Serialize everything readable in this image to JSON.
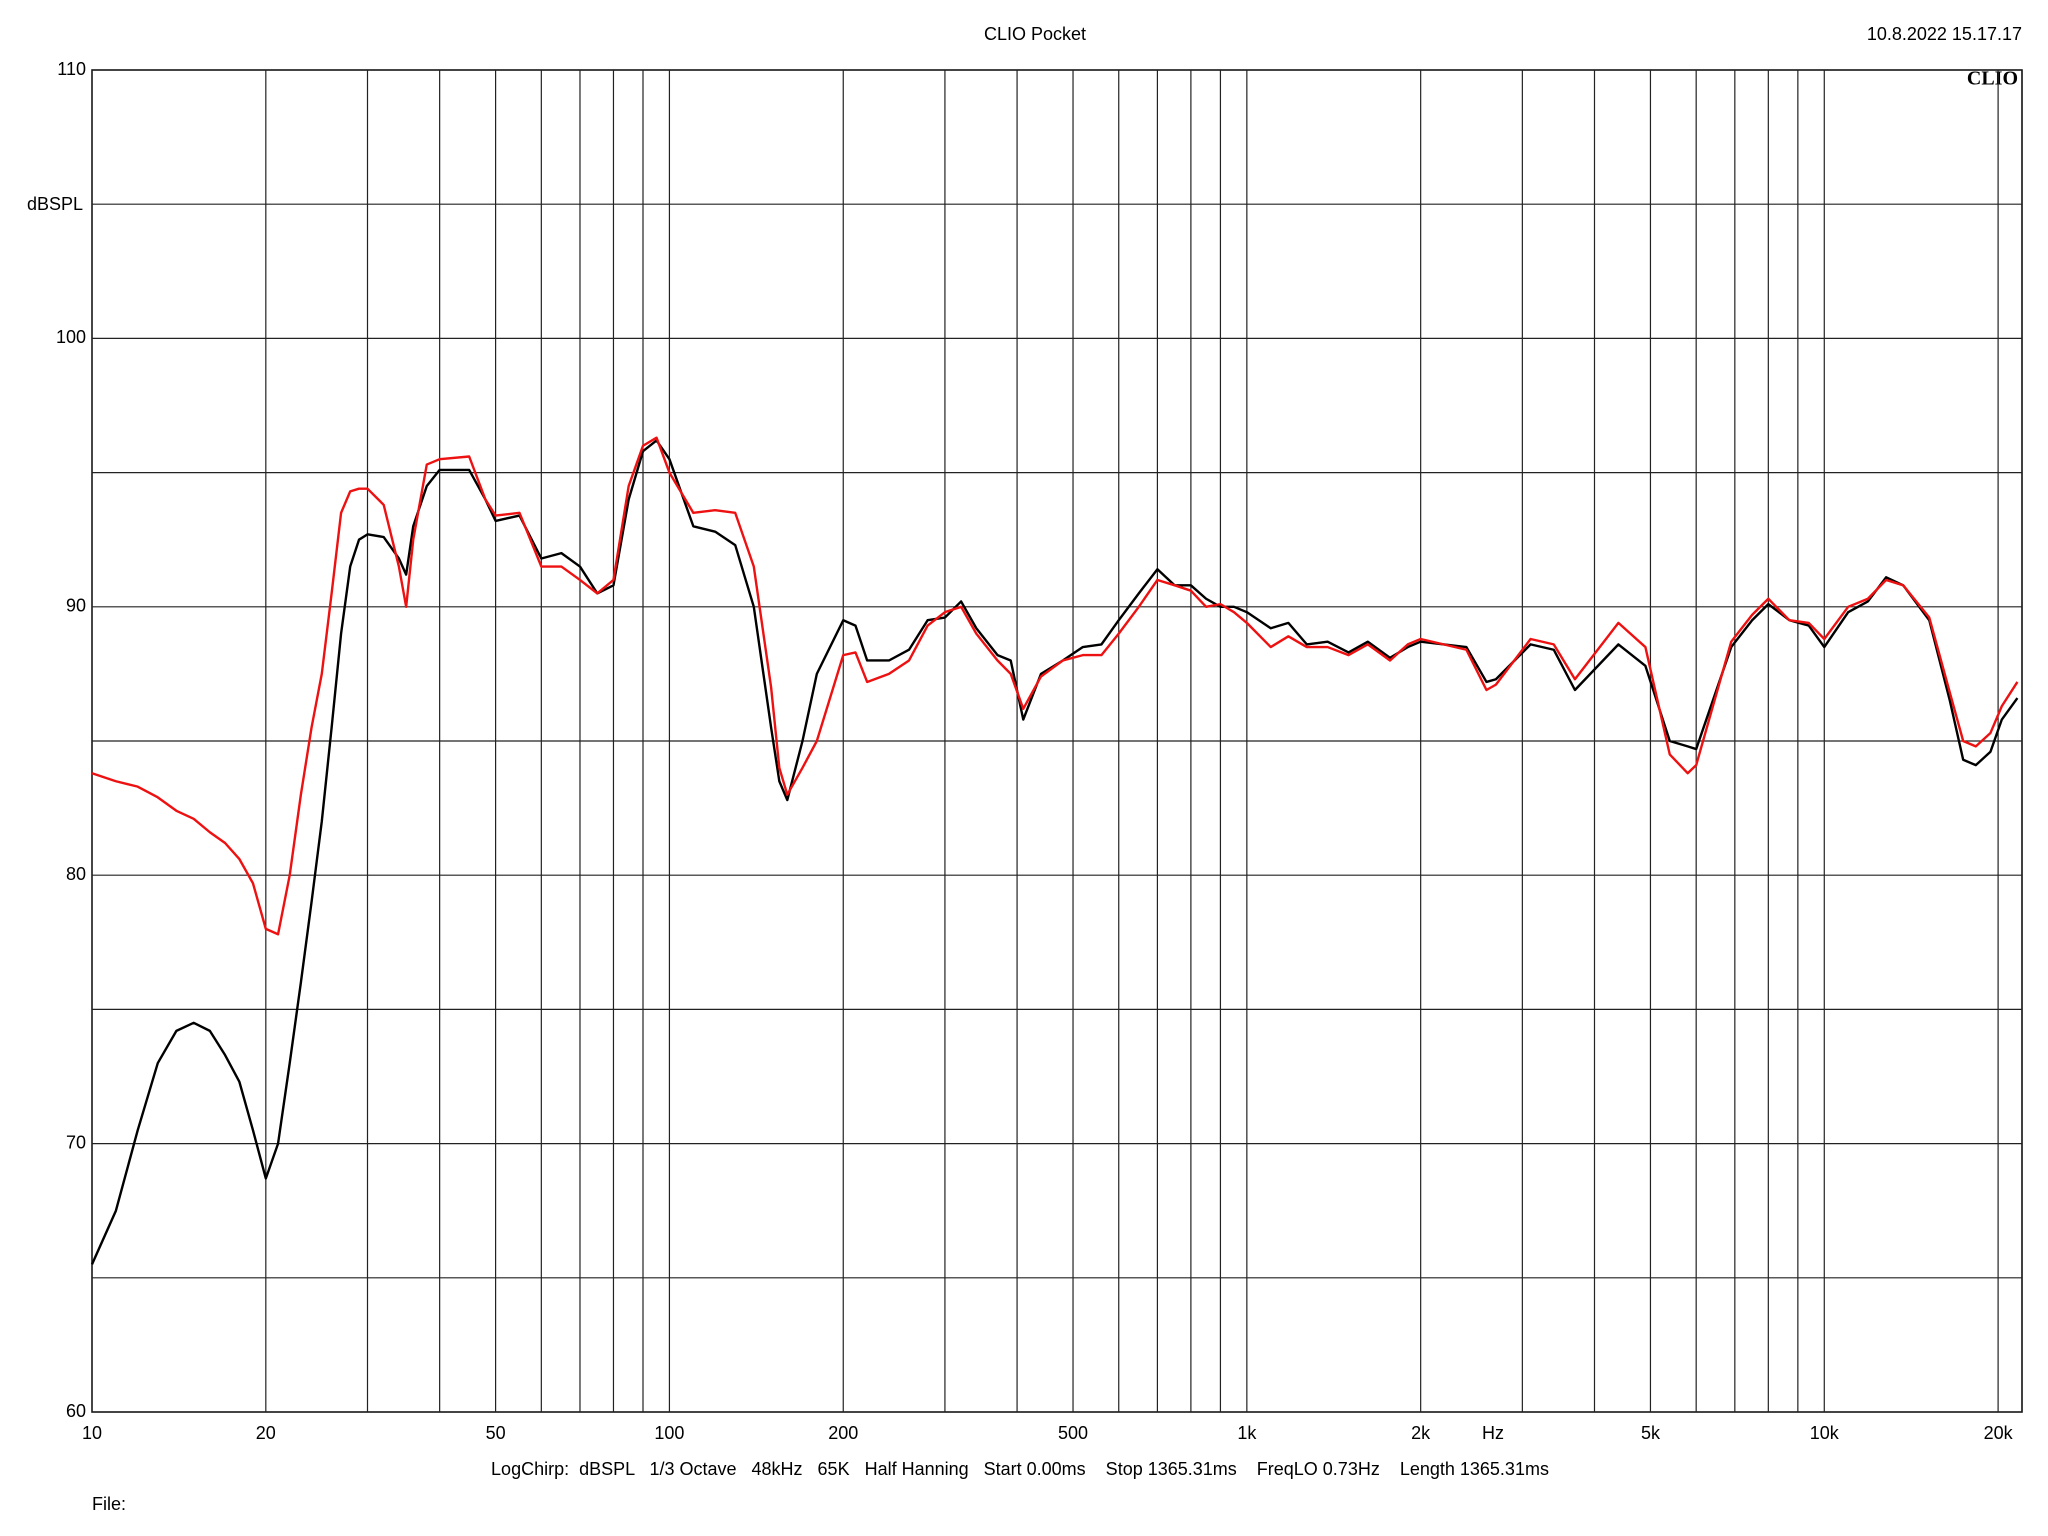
{
  "chart_data": {
    "type": "line",
    "title": "CLIO Pocket",
    "timestamp": "10.8.2022 15.17.17",
    "logo": "CLIO",
    "ylabel": "dBSPL",
    "xlabel": "Hz",
    "settings": "LogChirp:  dBSPL   1/3 Octave   48kHz   65K   Half Hanning   Start 0.00ms    Stop 1365.31ms    FreqLO 0.73Hz    Length 1365.31ms",
    "file_label": "File:",
    "xscale": "log",
    "grid": true,
    "xlim": [
      10,
      22000
    ],
    "ylim": [
      60,
      110
    ],
    "xticks": [
      10,
      20,
      50,
      100,
      200,
      500,
      {
        "value": 1000,
        "label": "1k"
      },
      {
        "value": 2000,
        "label": "2k"
      },
      {
        "value": 5000,
        "label": "5k"
      },
      {
        "value": 10000,
        "label": "10k"
      },
      {
        "value": 20000,
        "label": "20k"
      }
    ],
    "xminor": [
      30,
      40,
      60,
      70,
      80,
      90,
      300,
      400,
      600,
      700,
      800,
      900,
      3000,
      4000,
      6000,
      7000,
      8000,
      9000
    ],
    "yticks": [
      60,
      70,
      80,
      90,
      100,
      110
    ],
    "yminor": [
      65,
      75,
      85,
      95,
      105
    ],
    "x": [
      10,
      11,
      12,
      13,
      14,
      15,
      16,
      17,
      18,
      19,
      20,
      21,
      22,
      23,
      24,
      25,
      26,
      27,
      28,
      29,
      30,
      32,
      34,
      35,
      36,
      38,
      40,
      45,
      48,
      50,
      55,
      60,
      65,
      70,
      75,
      80,
      85,
      90,
      95,
      100,
      110,
      120,
      130,
      140,
      150,
      155,
      160,
      170,
      180,
      200,
      210,
      220,
      240,
      260,
      280,
      300,
      320,
      340,
      370,
      390,
      410,
      440,
      480,
      520,
      560,
      600,
      650,
      700,
      750,
      800,
      850,
      900,
      950,
      1000,
      1100,
      1180,
      1270,
      1380,
      1500,
      1620,
      1770,
      1900,
      2000,
      2400,
      2600,
      2700,
      3100,
      3400,
      3700,
      4400,
      4900,
      5400,
      5800,
      6000,
      6900,
      7500,
      8000,
      8700,
      9400,
      10000,
      11000,
      11900,
      12800,
      13700,
      15200,
      16500,
      17400,
      18300,
      19400,
      20300,
      21600
    ],
    "series": [
      {
        "color": "#000000",
        "values": [
          65.5,
          67.5,
          70.5,
          73,
          74.2,
          74.5,
          74.2,
          73.3,
          72.3,
          70.5,
          68.7,
          70,
          73,
          76,
          79,
          82,
          85.5,
          89,
          91.5,
          92.5,
          92.7,
          92.6,
          91.8,
          91.2,
          93,
          94.5,
          95.1,
          95.1,
          94,
          93.2,
          93.4,
          91.8,
          92,
          91.5,
          90.5,
          90.8,
          94,
          95.8,
          96.2,
          95.5,
          93,
          92.8,
          92.3,
          90,
          85.5,
          83.5,
          82.8,
          85,
          87.5,
          89.5,
          89.3,
          88,
          88,
          88.4,
          89.5,
          89.6,
          90.2,
          89.2,
          88.2,
          88,
          85.8,
          87.5,
          88,
          88.5,
          88.6,
          89.5,
          90.5,
          91.4,
          90.8,
          90.8,
          90.3,
          90,
          90,
          89.8,
          89.2,
          89.4,
          88.6,
          88.7,
          88.3,
          88.7,
          88.1,
          88.5,
          88.7,
          88.5,
          87.2,
          87.3,
          88.6,
          88.4,
          86.9,
          88.6,
          87.8,
          85,
          84.8,
          84.7,
          88.5,
          89.5,
          90.1,
          89.5,
          89.3,
          88.5,
          89.8,
          90.2,
          91.1,
          90.8,
          89.5,
          86.5,
          84.3,
          84.1,
          84.6,
          85.8,
          86.6
        ]
      },
      {
        "color": "#ee1111",
        "values": [
          83.8,
          83.5,
          83.3,
          82.9,
          82.4,
          82.1,
          81.6,
          81.2,
          80.6,
          79.7,
          78,
          77.8,
          80,
          83,
          85.5,
          87.5,
          90.5,
          93.5,
          94.3,
          94.4,
          94.4,
          93.8,
          91.5,
          90,
          92.5,
          95.3,
          95.5,
          95.6,
          94,
          93.4,
          93.5,
          91.5,
          91.5,
          91,
          90.5,
          91,
          94.5,
          96,
          96.3,
          95,
          93.5,
          93.6,
          93.5,
          91.5,
          87,
          84,
          83,
          84,
          85,
          88.2,
          88.3,
          87.2,
          87.5,
          88,
          89.3,
          89.8,
          90,
          89,
          88,
          87.5,
          86.2,
          87.4,
          88,
          88.2,
          88.2,
          89,
          90,
          91,
          90.8,
          90.6,
          90,
          90.1,
          89.8,
          89.4,
          88.5,
          88.9,
          88.5,
          88.5,
          88.2,
          88.6,
          88,
          88.6,
          88.8,
          88.4,
          86.9,
          87.1,
          88.8,
          88.6,
          87.3,
          89.4,
          88.5,
          84.5,
          83.8,
          84.1,
          88.7,
          89.7,
          90.3,
          89.5,
          89.4,
          88.8,
          90,
          90.3,
          91,
          90.8,
          89.6,
          86.8,
          85,
          84.8,
          85.3,
          86.3,
          87.2
        ]
      }
    ]
  }
}
